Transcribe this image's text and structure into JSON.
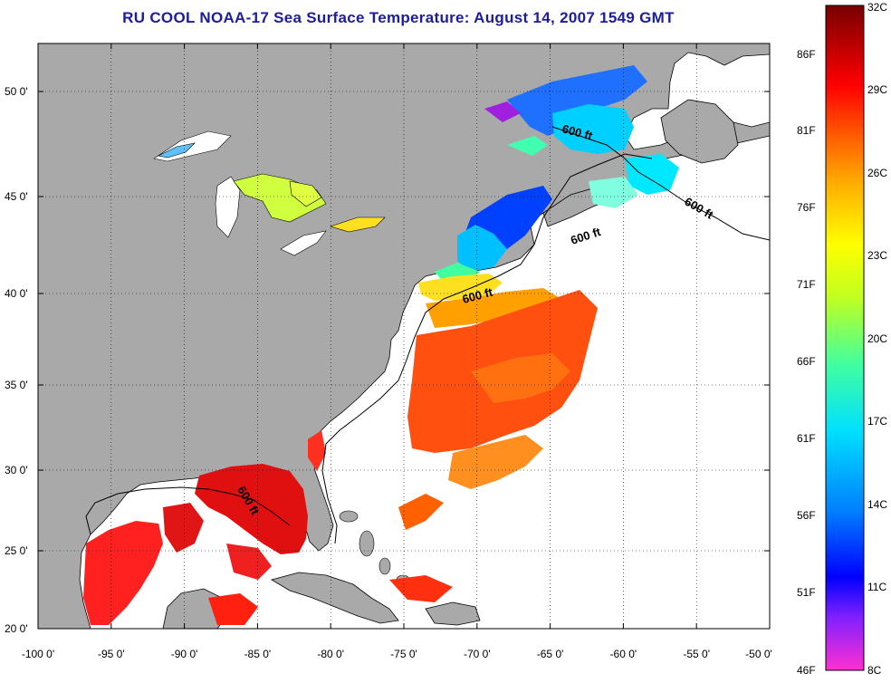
{
  "title": "RU COOL  NOAA-17  Sea Surface Temperature:  August 14, 2007 1549 GMT",
  "map": {
    "lon_ticks": [
      "-100 0'",
      "-95 0'",
      "-90 0'",
      "-85 0'",
      "-80 0'",
      "-75 0'",
      "-70 0'",
      "-65 0'",
      "-60 0'",
      "-55 0'",
      "-50 0'"
    ],
    "lat_ticks": [
      "50 0'",
      "45 0'",
      "40 0'",
      "35 0'",
      "30 0'",
      "25 0'",
      "20 0'"
    ],
    "isobath_label": "600 ft",
    "colors": {
      "land": "#a9a9a9",
      "ocean": "#ffffff",
      "grid": "#000000"
    }
  },
  "colorbar": {
    "celsius": [
      "32C",
      "29C",
      "26C",
      "23C",
      "20C",
      "17C",
      "14C",
      "11C",
      "8C"
    ],
    "fahrenheit": [
      "86F",
      "81F",
      "76F",
      "71F",
      "66F",
      "61F",
      "56F",
      "51F",
      "46F"
    ],
    "range_c": [
      8,
      32
    ],
    "stops": [
      "#ff30d0",
      "#8020ff",
      "#0000ff",
      "#0080ff",
      "#00e0ff",
      "#40ffa0",
      "#c0ff20",
      "#ffff00",
      "#ffb000",
      "#ff6000",
      "#ff0000",
      "#b00000",
      "#780000"
    ]
  }
}
